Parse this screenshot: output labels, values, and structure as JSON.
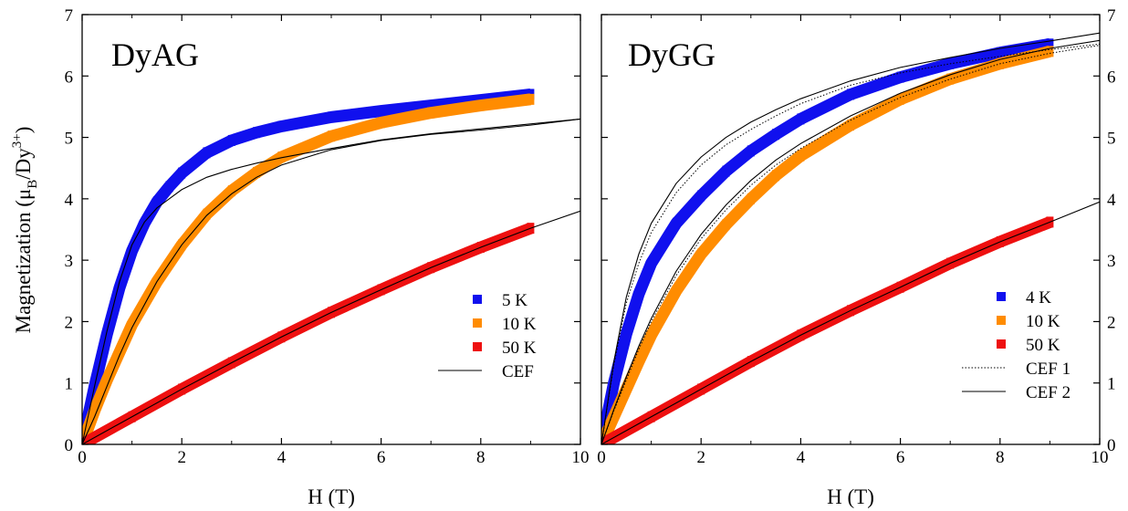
{
  "figure": {
    "ylabel_main": "Magnetization (μ",
    "ylabel_sub": "B",
    "ylabel_mid": "/Dy",
    "ylabel_sup": "3+",
    "ylabel_end": ")"
  },
  "chart_data": [
    {
      "type": "scatter",
      "title": "DyAG",
      "xlabel": "H (T)",
      "ylabel": "Magnetization (μB/Dy3+)",
      "xlim": [
        0,
        10
      ],
      "ylim": [
        0,
        7
      ],
      "xticks": [
        0,
        2,
        4,
        6,
        8,
        10
      ],
      "yticks": [
        0,
        1,
        2,
        3,
        4,
        5,
        6,
        7
      ],
      "legend_position": "bottom-right",
      "series": [
        {
          "name": "5 K",
          "kind": "markers",
          "color": "#1010ee",
          "x": [
            0,
            0.25,
            0.5,
            0.75,
            1,
            1.25,
            1.5,
            1.75,
            2,
            2.5,
            3,
            3.5,
            4,
            5,
            6,
            7,
            8,
            9
          ],
          "y": [
            0,
            0.95,
            1.8,
            2.55,
            3.15,
            3.6,
            3.95,
            4.2,
            4.42,
            4.75,
            4.95,
            5.08,
            5.18,
            5.33,
            5.43,
            5.52,
            5.61,
            5.7
          ]
        },
        {
          "name": "10 K",
          "kind": "markers",
          "color": "#ff8c00",
          "x": [
            0,
            0.25,
            0.5,
            0.75,
            1,
            1.5,
            2,
            2.5,
            3,
            3.5,
            4,
            5,
            6,
            7,
            8,
            9
          ],
          "y": [
            0,
            0.55,
            1.05,
            1.5,
            1.95,
            2.65,
            3.25,
            3.75,
            4.13,
            4.43,
            4.68,
            5.02,
            5.24,
            5.4,
            5.52,
            5.62
          ]
        },
        {
          "name": "50 K",
          "kind": "markers",
          "color": "#ee1010",
          "x": [
            0,
            1,
            2,
            3,
            4,
            5,
            6,
            7,
            8,
            9
          ],
          "y": [
            0,
            0.45,
            0.9,
            1.33,
            1.75,
            2.15,
            2.52,
            2.88,
            3.21,
            3.52
          ]
        },
        {
          "name": "CEF",
          "kind": "line",
          "color": "#000000",
          "dash": "solid",
          "x": [
            0,
            0.25,
            0.5,
            0.75,
            1,
            1.25,
            1.5,
            1.75,
            2,
            2.5,
            3,
            3.5,
            4,
            5,
            6,
            7,
            8,
            9,
            10
          ],
          "y": [
            0,
            0.95,
            1.85,
            2.65,
            3.25,
            3.62,
            3.85,
            4.0,
            4.15,
            4.35,
            4.48,
            4.58,
            4.67,
            4.82,
            4.96,
            5.06,
            5.14,
            5.22,
            5.3
          ]
        },
        {
          "name": "",
          "kind": "line",
          "color": "#000000",
          "dash": "solid",
          "x": [
            0,
            0.25,
            0.5,
            0.75,
            1,
            1.5,
            2,
            2.5,
            3,
            3.5,
            4,
            5,
            6,
            7,
            8,
            9,
            10
          ],
          "y": [
            0,
            0.45,
            0.95,
            1.45,
            1.9,
            2.65,
            3.25,
            3.73,
            4.08,
            4.35,
            4.55,
            4.8,
            4.95,
            5.05,
            5.12,
            5.2,
            5.3
          ]
        },
        {
          "name": "",
          "kind": "line",
          "color": "#000000",
          "dash": "solid",
          "x": [
            0,
            1,
            2,
            3,
            4,
            5,
            6,
            7,
            8,
            9,
            10
          ],
          "y": [
            0,
            0.45,
            0.9,
            1.33,
            1.75,
            2.15,
            2.52,
            2.88,
            3.21,
            3.52,
            3.8
          ]
        }
      ]
    },
    {
      "type": "scatter",
      "title": "DyGG",
      "xlabel": "H (T)",
      "ylabel": "",
      "xlim": [
        0,
        10
      ],
      "ylim": [
        0,
        7
      ],
      "xticks": [
        0,
        2,
        4,
        6,
        8,
        10
      ],
      "yticks": [
        0,
        1,
        2,
        3,
        4,
        5,
        6,
        7
      ],
      "legend_position": "bottom-right",
      "series": [
        {
          "name": "4 K",
          "kind": "markers",
          "color": "#1010ee",
          "x": [
            0,
            0.25,
            0.5,
            0.75,
            1,
            1.5,
            2,
            2.5,
            3,
            3.5,
            4,
            5,
            6,
            7,
            8,
            9
          ],
          "y": [
            0,
            1.0,
            1.8,
            2.45,
            2.95,
            3.6,
            4.05,
            4.45,
            4.78,
            5.05,
            5.3,
            5.7,
            5.98,
            6.2,
            6.38,
            6.52
          ]
        },
        {
          "name": "10 K",
          "kind": "markers",
          "color": "#ff8c00",
          "x": [
            0,
            0.25,
            0.5,
            0.75,
            1,
            1.5,
            2,
            2.5,
            3,
            3.5,
            4,
            5,
            6,
            7,
            8,
            9
          ],
          "y": [
            0,
            0.45,
            0.9,
            1.35,
            1.78,
            2.5,
            3.1,
            3.58,
            4.0,
            4.38,
            4.7,
            5.2,
            5.62,
            5.95,
            6.2,
            6.4
          ]
        },
        {
          "name": "50 K",
          "kind": "markers",
          "color": "#ee1010",
          "x": [
            0,
            1,
            2,
            3,
            4,
            5,
            6,
            7,
            8,
            9
          ],
          "y": [
            0,
            0.45,
            0.9,
            1.35,
            1.78,
            2.18,
            2.56,
            2.95,
            3.3,
            3.62
          ]
        },
        {
          "name": "CEF 1",
          "kind": "line",
          "color": "#000000",
          "dash": "dotted",
          "x": [
            0,
            0.25,
            0.5,
            0.75,
            1,
            1.5,
            2,
            2.5,
            3,
            3.5,
            4,
            5,
            6,
            7,
            8,
            9,
            10
          ],
          "y": [
            0,
            1.3,
            2.3,
            2.95,
            3.45,
            4.1,
            4.55,
            4.88,
            5.13,
            5.35,
            5.55,
            5.85,
            6.05,
            6.2,
            6.32,
            6.43,
            6.52
          ]
        },
        {
          "name": "CEF 2",
          "kind": "line",
          "color": "#000000",
          "dash": "solid",
          "x": [
            0,
            0.25,
            0.5,
            0.75,
            1,
            1.5,
            2,
            2.5,
            3,
            3.5,
            4,
            5,
            6,
            7,
            8,
            9,
            10
          ],
          "y": [
            0,
            1.35,
            2.4,
            3.1,
            3.6,
            4.25,
            4.68,
            5.0,
            5.25,
            5.45,
            5.63,
            5.92,
            6.14,
            6.3,
            6.45,
            6.57,
            6.7
          ]
        },
        {
          "name": "",
          "kind": "line",
          "color": "#000000",
          "dash": "dotted",
          "x": [
            0,
            0.25,
            0.5,
            0.75,
            1,
            1.5,
            2,
            2.5,
            3,
            3.5,
            4,
            5,
            6,
            7,
            8,
            9,
            10
          ],
          "y": [
            0,
            0.55,
            1.05,
            1.55,
            2.0,
            2.75,
            3.35,
            3.82,
            4.22,
            4.55,
            4.82,
            5.28,
            5.65,
            5.95,
            6.2,
            6.37,
            6.5
          ]
        },
        {
          "name": "",
          "kind": "line",
          "color": "#000000",
          "dash": "solid",
          "x": [
            0,
            0.25,
            0.5,
            0.75,
            1,
            1.5,
            2,
            2.5,
            3,
            3.5,
            4,
            5,
            6,
            7,
            8,
            9,
            10
          ],
          "y": [
            0,
            0.57,
            1.1,
            1.6,
            2.05,
            2.82,
            3.42,
            3.9,
            4.3,
            4.63,
            4.9,
            5.35,
            5.72,
            6.02,
            6.27,
            6.45,
            6.58
          ]
        },
        {
          "name": "",
          "kind": "line",
          "color": "#000000",
          "dash": "solid",
          "x": [
            0,
            1,
            2,
            3,
            4,
            5,
            6,
            7,
            8,
            9,
            10
          ],
          "y": [
            0,
            0.45,
            0.9,
            1.35,
            1.78,
            2.18,
            2.56,
            2.95,
            3.3,
            3.62,
            3.95
          ]
        }
      ]
    }
  ]
}
